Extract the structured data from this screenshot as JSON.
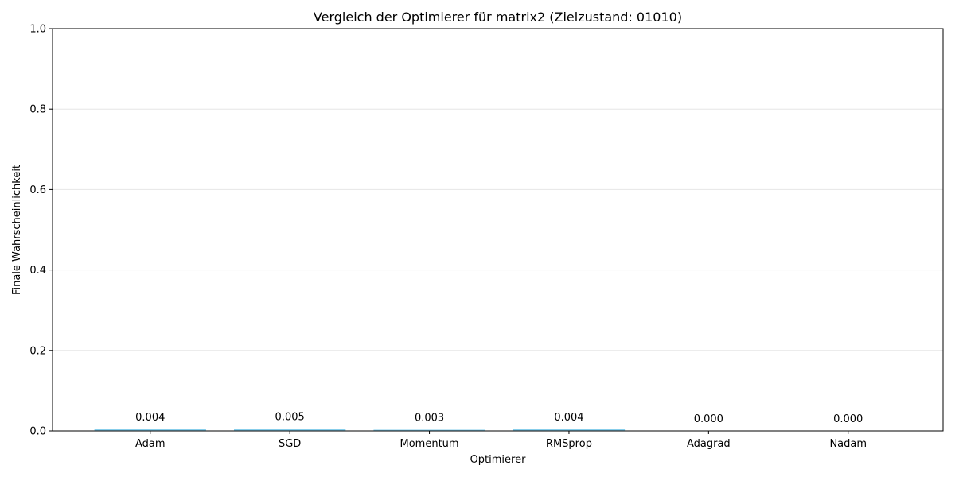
{
  "chart_data": {
    "type": "bar",
    "title": "Vergleich der Optimierer für matrix2 (Zielzustand: 01010)",
    "xlabel": "Optimierer",
    "ylabel": "Finale Wahrscheinlichkeit",
    "categories": [
      "Adam",
      "SGD",
      "Momentum",
      "RMSprop",
      "Adagrad",
      "Nadam"
    ],
    "values": [
      0.004,
      0.005,
      0.003,
      0.004,
      0.0,
      0.0
    ],
    "data_labels": [
      "0.004",
      "0.005",
      "0.003",
      "0.004",
      "0.000",
      "0.000"
    ],
    "ylim": [
      0,
      1
    ],
    "yticks": [
      0.0,
      0.2,
      0.4,
      0.6,
      0.8,
      1.0
    ],
    "ytick_labels": [
      "0.0",
      "0.2",
      "0.4",
      "0.6",
      "0.8",
      "1.0"
    ],
    "grid": "y",
    "colors": {
      "bar": "#87ceeb",
      "grid": "#e6e6e6",
      "axis": "#000000"
    }
  }
}
